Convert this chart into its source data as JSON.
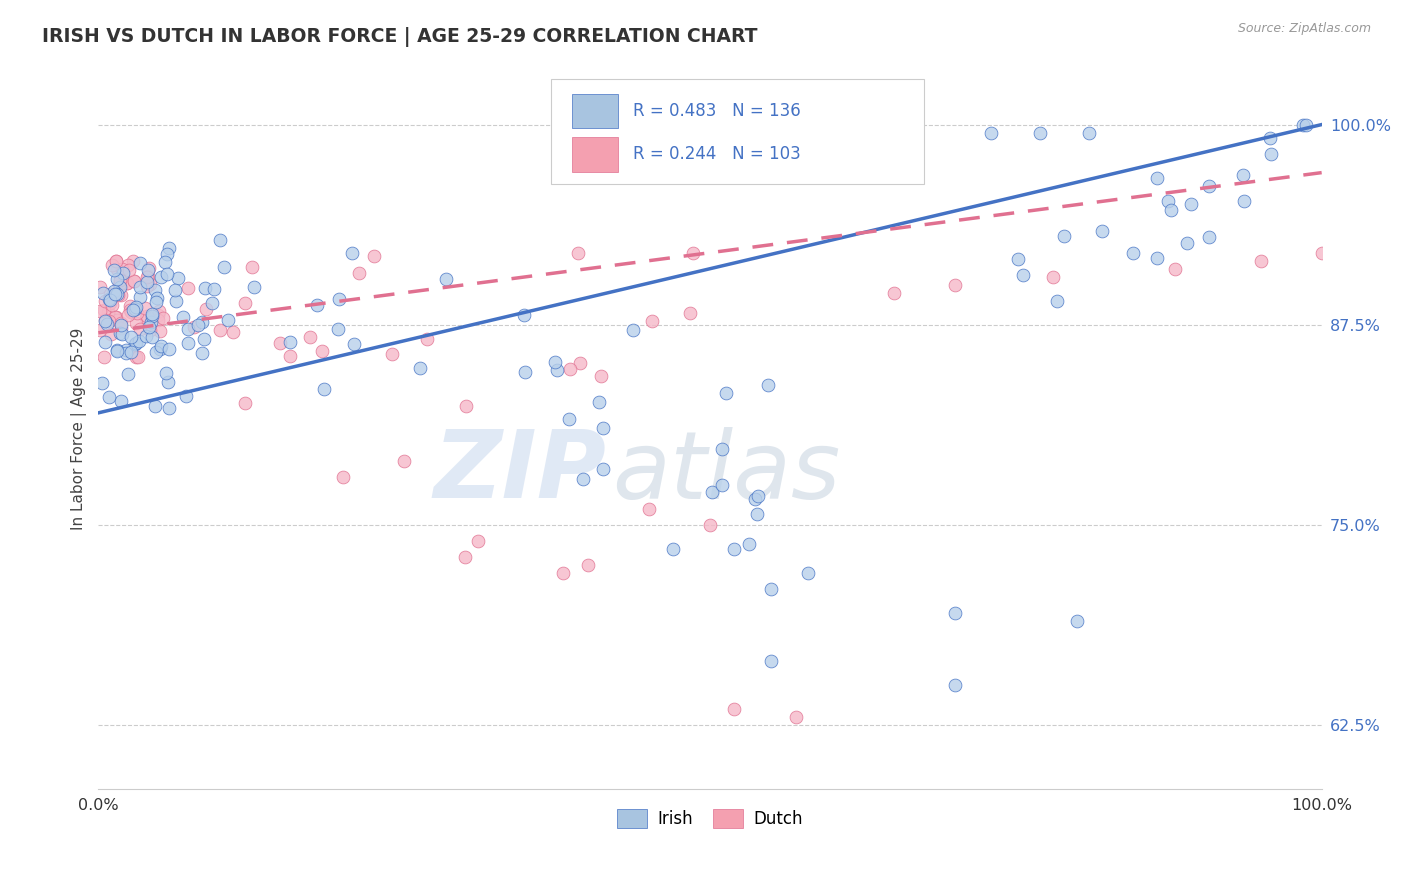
{
  "title": "IRISH VS DUTCH IN LABOR FORCE | AGE 25-29 CORRELATION CHART",
  "source": "Source: ZipAtlas.com",
  "ylabel": "In Labor Force | Age 25-29",
  "xlim": [
    0.0,
    1.0
  ],
  "ylim": [
    0.585,
    1.035
  ],
  "ytick_vals": [
    0.625,
    0.75,
    0.875,
    1.0
  ],
  "ytick_labels": [
    "62.5%",
    "75.0%",
    "87.5%",
    "100.0%"
  ],
  "xtick_labels": [
    "0.0%",
    "100.0%"
  ],
  "watermark_zip": "ZIP",
  "watermark_atlas": "atlas",
  "irish_fill": "#b8d0ea",
  "irish_edge": "#4472c4",
  "dutch_fill": "#f5b8c8",
  "dutch_edge": "#e07090",
  "irish_line_color": "#4472c4",
  "dutch_line_color": "#e07090",
  "legend_irish_fill": "#a8c4e0",
  "legend_dutch_fill": "#f4a0b0",
  "R_irish": 0.483,
  "N_irish": 136,
  "R_dutch": 0.244,
  "N_dutch": 103,
  "background_color": "#ffffff",
  "grid_color": "#cccccc",
  "tick_label_color": "#4472c4",
  "title_color": "#333333",
  "source_color": "#999999"
}
